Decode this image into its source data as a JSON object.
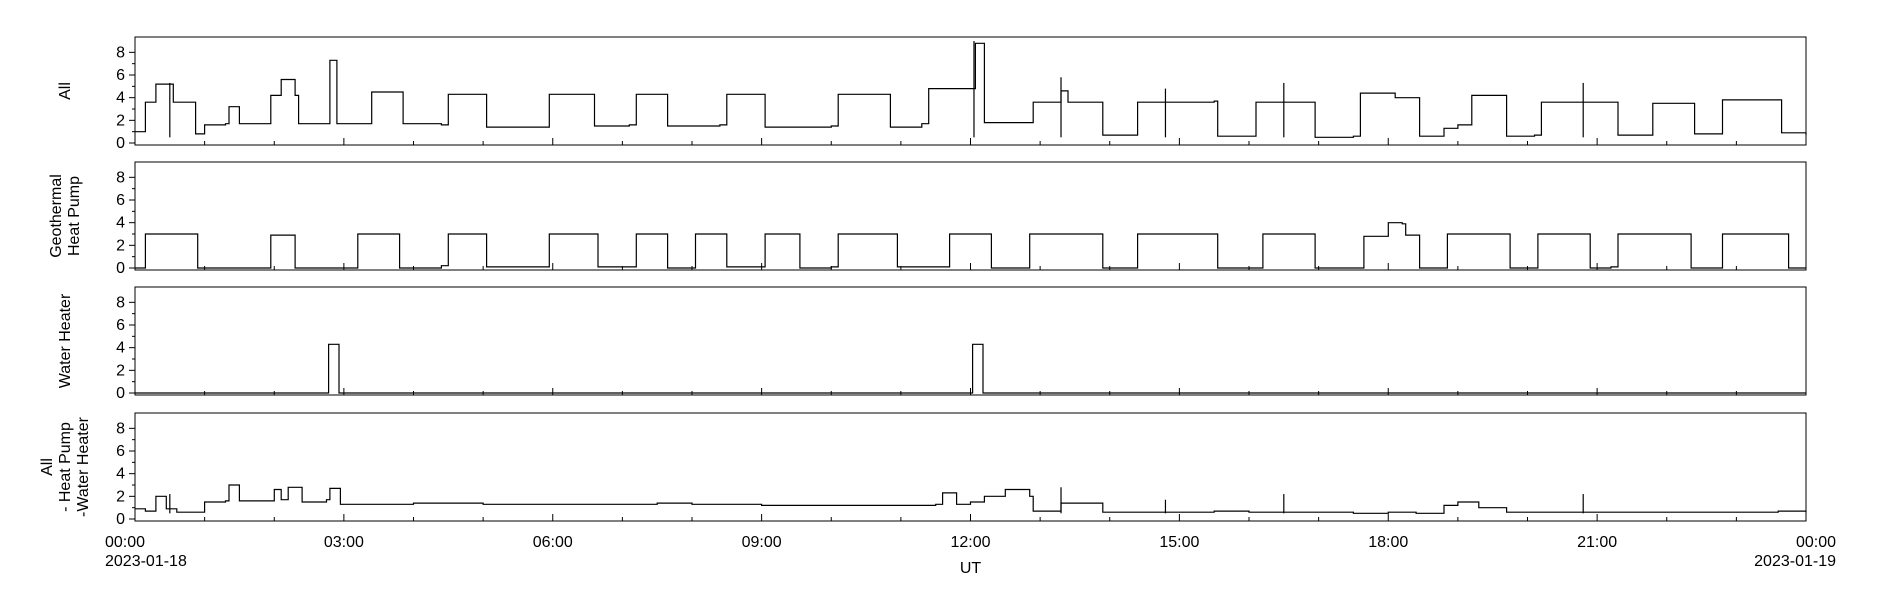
{
  "chart_data": {
    "type": "line",
    "xlabel": "UT",
    "xlim": [
      "2023-01-18 00:00",
      "2023-01-19 00:00"
    ],
    "x_ticks": [
      "00:00",
      "03:00",
      "06:00",
      "09:00",
      "12:00",
      "15:00",
      "18:00",
      "21:00",
      "00:00"
    ],
    "x_date_labels": [
      {
        "at_tick": 0,
        "text": "2023-01-18"
      },
      {
        "at_tick": 8,
        "text": "2023-01-19"
      }
    ],
    "ylim": [
      0,
      9
    ],
    "y_ticks": [
      0,
      2,
      4,
      6,
      8
    ],
    "panels": [
      {
        "ylabel": [
          "All"
        ],
        "profile": [
          [
            0,
            1.0
          ],
          [
            0.1,
            1.0
          ],
          [
            0.15,
            3.6
          ],
          [
            0.3,
            5.2
          ],
          [
            0.55,
            3.6
          ],
          [
            0.85,
            3.6
          ],
          [
            0.87,
            0.8
          ],
          [
            1.0,
            1.6
          ],
          [
            1.3,
            1.7
          ],
          [
            1.35,
            3.2
          ],
          [
            1.5,
            1.7
          ],
          [
            1.9,
            1.7
          ],
          [
            1.95,
            4.2
          ],
          [
            2.1,
            5.6
          ],
          [
            2.3,
            4.2
          ],
          [
            2.35,
            1.7
          ],
          [
            2.75,
            1.7
          ],
          [
            2.8,
            7.3
          ],
          [
            2.9,
            1.7
          ],
          [
            3.1,
            1.7
          ],
          [
            3.4,
            4.5
          ],
          [
            3.8,
            4.5
          ],
          [
            3.85,
            1.7
          ],
          [
            4.4,
            1.6
          ],
          [
            4.5,
            4.3
          ],
          [
            5.0,
            4.3
          ],
          [
            5.05,
            1.4
          ],
          [
            5.9,
            1.4
          ],
          [
            5.95,
            4.3
          ],
          [
            6.55,
            4.3
          ],
          [
            6.6,
            1.5
          ],
          [
            7.1,
            1.6
          ],
          [
            7.2,
            4.3
          ],
          [
            7.6,
            4.3
          ],
          [
            7.65,
            1.5
          ],
          [
            8.4,
            1.6
          ],
          [
            8.5,
            4.3
          ],
          [
            9.0,
            4.3
          ],
          [
            9.05,
            1.4
          ],
          [
            10.0,
            1.5
          ],
          [
            10.1,
            4.3
          ],
          [
            10.8,
            4.3
          ],
          [
            10.85,
            1.4
          ],
          [
            11.3,
            1.7
          ],
          [
            11.4,
            4.8
          ],
          [
            12.0,
            4.8
          ],
          [
            12.07,
            8.8
          ],
          [
            12.2,
            1.8
          ],
          [
            12.85,
            1.8
          ],
          [
            12.9,
            3.6
          ],
          [
            13.3,
            4.6
          ],
          [
            13.4,
            3.6
          ],
          [
            13.85,
            3.6
          ],
          [
            13.9,
            0.7
          ],
          [
            14.3,
            0.7
          ],
          [
            14.4,
            3.6
          ],
          [
            14.95,
            3.6
          ],
          [
            15.0,
            3.6
          ],
          [
            15.5,
            3.7
          ],
          [
            15.55,
            0.6
          ],
          [
            16.0,
            0.6
          ],
          [
            16.1,
            3.6
          ],
          [
            16.5,
            3.6
          ],
          [
            16.9,
            3.6
          ],
          [
            16.95,
            0.5
          ],
          [
            17.5,
            0.6
          ],
          [
            17.6,
            4.4
          ],
          [
            18.0,
            4.4
          ],
          [
            18.1,
            4.0
          ],
          [
            18.4,
            4.0
          ],
          [
            18.45,
            0.6
          ],
          [
            18.8,
            1.3
          ],
          [
            19.0,
            1.6
          ],
          [
            19.2,
            4.2
          ],
          [
            19.65,
            4.2
          ],
          [
            19.7,
            0.6
          ],
          [
            20.1,
            0.7
          ],
          [
            20.2,
            3.6
          ],
          [
            20.8,
            3.6
          ],
          [
            21.25,
            3.6
          ],
          [
            21.3,
            0.7
          ],
          [
            21.7,
            0.7
          ],
          [
            21.8,
            3.5
          ],
          [
            22.35,
            3.5
          ],
          [
            22.4,
            0.8
          ],
          [
            22.7,
            0.8
          ],
          [
            22.8,
            3.8
          ],
          [
            23.6,
            3.8
          ],
          [
            23.65,
            0.9
          ],
          [
            24,
            0.7
          ]
        ],
        "spikes": [
          [
            0.5,
            5.3
          ],
          [
            12.05,
            9.0
          ],
          [
            13.3,
            5.8
          ],
          [
            14.8,
            4.8
          ],
          [
            16.5,
            5.3
          ],
          [
            20.8,
            5.3
          ]
        ]
      },
      {
        "ylabel": [
          "Geothermal",
          "Heat Pump"
        ],
        "profile": [
          [
            0,
            0.0
          ],
          [
            0.1,
            0.0
          ],
          [
            0.15,
            3.0
          ],
          [
            0.85,
            3.0
          ],
          [
            0.9,
            0.0
          ],
          [
            1.0,
            0.0
          ],
          [
            1.9,
            0.0
          ],
          [
            1.95,
            2.9
          ],
          [
            2.25,
            2.9
          ],
          [
            2.3,
            0.0
          ],
          [
            2.9,
            0.0
          ],
          [
            3.0,
            0.0
          ],
          [
            3.2,
            3.0
          ],
          [
            3.7,
            3.0
          ],
          [
            3.8,
            0.0
          ],
          [
            4.4,
            0.2
          ],
          [
            4.5,
            3.0
          ],
          [
            5.0,
            3.0
          ],
          [
            5.05,
            0.1
          ],
          [
            5.85,
            0.1
          ],
          [
            5.95,
            3.0
          ],
          [
            6.6,
            3.0
          ],
          [
            6.65,
            0.1
          ],
          [
            7.1,
            0.1
          ],
          [
            7.2,
            3.0
          ],
          [
            7.6,
            3.0
          ],
          [
            7.65,
            0.0
          ],
          [
            8.0,
            0.0
          ],
          [
            8.05,
            3.0
          ],
          [
            8.45,
            3.0
          ],
          [
            8.5,
            0.1
          ],
          [
            9.0,
            0.1
          ],
          [
            9.05,
            3.0
          ],
          [
            9.5,
            3.0
          ],
          [
            9.55,
            0.0
          ],
          [
            10.0,
            0.1
          ],
          [
            10.1,
            3.0
          ],
          [
            10.9,
            3.0
          ],
          [
            10.95,
            0.1
          ],
          [
            11.6,
            0.1
          ],
          [
            11.7,
            3.0
          ],
          [
            12.25,
            3.0
          ],
          [
            12.3,
            0.0
          ],
          [
            12.75,
            0.0
          ],
          [
            12.85,
            3.0
          ],
          [
            13.85,
            3.0
          ],
          [
            13.9,
            0.0
          ],
          [
            14.3,
            0.0
          ],
          [
            14.4,
            3.0
          ],
          [
            15.5,
            3.0
          ],
          [
            15.55,
            0.0
          ],
          [
            16.1,
            0.0
          ],
          [
            16.2,
            3.0
          ],
          [
            16.9,
            3.0
          ],
          [
            16.95,
            0.0
          ],
          [
            17.6,
            0.0
          ],
          [
            17.65,
            2.8
          ],
          [
            17.75,
            2.8
          ],
          [
            18.0,
            4.0
          ],
          [
            18.2,
            3.9
          ],
          [
            18.25,
            2.9
          ],
          [
            18.4,
            2.9
          ],
          [
            18.45,
            0.0
          ],
          [
            18.75,
            0.0
          ],
          [
            18.85,
            3.0
          ],
          [
            19.7,
            3.0
          ],
          [
            19.75,
            0.0
          ],
          [
            20.05,
            0.0
          ],
          [
            20.15,
            3.0
          ],
          [
            20.85,
            3.0
          ],
          [
            20.9,
            0.0
          ],
          [
            21.2,
            0.1
          ],
          [
            21.3,
            3.0
          ],
          [
            22.3,
            3.0
          ],
          [
            22.35,
            0.0
          ],
          [
            22.7,
            0.0
          ],
          [
            22.8,
            3.0
          ],
          [
            23.7,
            3.0
          ],
          [
            23.75,
            0.0
          ],
          [
            24,
            0.0
          ]
        ],
        "spikes": []
      },
      {
        "ylabel": [
          "Water Heater"
        ],
        "profile": [
          [
            0,
            0.0
          ],
          [
            2.75,
            0.0
          ],
          [
            2.78,
            4.3
          ],
          [
            2.9,
            4.3
          ],
          [
            2.93,
            0.0
          ],
          [
            12.0,
            0.0
          ],
          [
            12.03,
            4.3
          ],
          [
            12.15,
            4.3
          ],
          [
            12.18,
            0.0
          ],
          [
            24,
            0.0
          ]
        ],
        "spikes": []
      },
      {
        "ylabel": [
          "All",
          "- Heat Pump",
          "-Water Heater"
        ],
        "profile": [
          [
            0,
            0.9
          ],
          [
            0.15,
            0.7
          ],
          [
            0.3,
            2.0
          ],
          [
            0.45,
            0.9
          ],
          [
            0.6,
            0.6
          ],
          [
            0.85,
            0.6
          ],
          [
            1.0,
            1.5
          ],
          [
            1.3,
            1.6
          ],
          [
            1.35,
            3.0
          ],
          [
            1.5,
            1.6
          ],
          [
            1.95,
            1.6
          ],
          [
            2.0,
            2.6
          ],
          [
            2.1,
            1.7
          ],
          [
            2.2,
            2.8
          ],
          [
            2.4,
            1.5
          ],
          [
            2.75,
            1.7
          ],
          [
            2.8,
            2.7
          ],
          [
            2.95,
            1.3
          ],
          [
            4.0,
            1.4
          ],
          [
            5.0,
            1.3
          ],
          [
            7.0,
            1.3
          ],
          [
            7.5,
            1.4
          ],
          [
            8.0,
            1.3
          ],
          [
            9.0,
            1.2
          ],
          [
            10.0,
            1.2
          ],
          [
            11.5,
            1.3
          ],
          [
            11.6,
            2.3
          ],
          [
            11.75,
            2.3
          ],
          [
            11.8,
            1.3
          ],
          [
            12.0,
            1.5
          ],
          [
            12.2,
            2.0
          ],
          [
            12.5,
            2.6
          ],
          [
            12.85,
            2.0
          ],
          [
            12.9,
            0.7
          ],
          [
            13.3,
            1.4
          ],
          [
            13.9,
            0.6
          ],
          [
            14.5,
            0.6
          ],
          [
            15.0,
            0.6
          ],
          [
            15.5,
            0.7
          ],
          [
            16.0,
            0.6
          ],
          [
            16.9,
            0.6
          ],
          [
            17.5,
            0.5
          ],
          [
            18.0,
            0.6
          ],
          [
            18.4,
            0.5
          ],
          [
            18.8,
            1.2
          ],
          [
            19.0,
            1.5
          ],
          [
            19.3,
            1.0
          ],
          [
            19.7,
            0.6
          ],
          [
            20.5,
            0.6
          ],
          [
            21.0,
            0.6
          ],
          [
            22.0,
            0.6
          ],
          [
            23.0,
            0.6
          ],
          [
            23.6,
            0.7
          ],
          [
            24,
            0.6
          ]
        ],
        "spikes": [
          [
            0.5,
            2.2
          ],
          [
            13.3,
            2.8
          ],
          [
            14.8,
            1.7
          ],
          [
            16.5,
            2.2
          ],
          [
            20.8,
            2.2
          ]
        ]
      }
    ]
  }
}
